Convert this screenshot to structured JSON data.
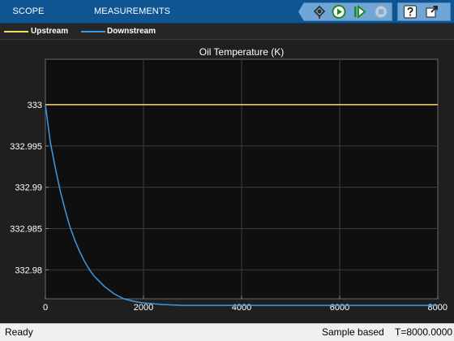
{
  "toolstrip": {
    "tabs": [
      {
        "label": "SCOPE"
      },
      {
        "label": "MEASUREMENTS"
      }
    ],
    "buttons": [
      {
        "icon": "highlight-signal-icon"
      },
      {
        "icon": "run-icon"
      },
      {
        "icon": "step-forward-icon"
      },
      {
        "icon": "stop-icon"
      },
      {
        "icon": "help-icon"
      },
      {
        "icon": "undock-icon"
      }
    ]
  },
  "legend": {
    "items": [
      {
        "label": "Upstream",
        "color": "#ffd86a"
      },
      {
        "label": "Downstream",
        "color": "#3a9ae8"
      }
    ]
  },
  "chart_data": {
    "type": "line",
    "title": "Oil Temperature (K)",
    "xlabel": "",
    "ylabel": "",
    "xlim": [
      0,
      8000
    ],
    "ylim": [
      332.9765,
      333.0055
    ],
    "xticks": [
      0,
      2000,
      4000,
      6000,
      8000
    ],
    "yticks": [
      332.98,
      332.985,
      332.99,
      332.995,
      333
    ],
    "ytick_labels": [
      "332.98",
      "332.985",
      "332.99",
      "332.995",
      "333"
    ],
    "grid": true,
    "legend_position": "top",
    "series": [
      {
        "name": "Upstream",
        "color": "#ffd86a",
        "x": [
          0,
          8000
        ],
        "y": [
          333.0,
          333.0
        ]
      },
      {
        "name": "Downstream",
        "color": "#3a9ae8",
        "x": [
          0,
          100,
          200,
          300,
          400,
          500,
          600,
          700,
          800,
          900,
          1000,
          1200,
          1400,
          1600,
          1800,
          2000,
          2400,
          2800,
          3200,
          3600,
          4000,
          5000,
          6000,
          7000,
          8000
        ],
        "y": [
          333.0,
          332.9955,
          332.9924,
          332.9896,
          332.9873,
          332.9852,
          332.9836,
          332.9822,
          332.981,
          332.98,
          332.9792,
          332.978,
          332.9771,
          332.9765,
          332.9762,
          332.976,
          332.9758,
          332.9757,
          332.9757,
          332.9757,
          332.9757,
          332.9757,
          332.9757,
          332.9757,
          332.9757
        ]
      }
    ]
  },
  "status": {
    "left": "Ready",
    "mode": "Sample based",
    "time": "T=8000.0000"
  }
}
